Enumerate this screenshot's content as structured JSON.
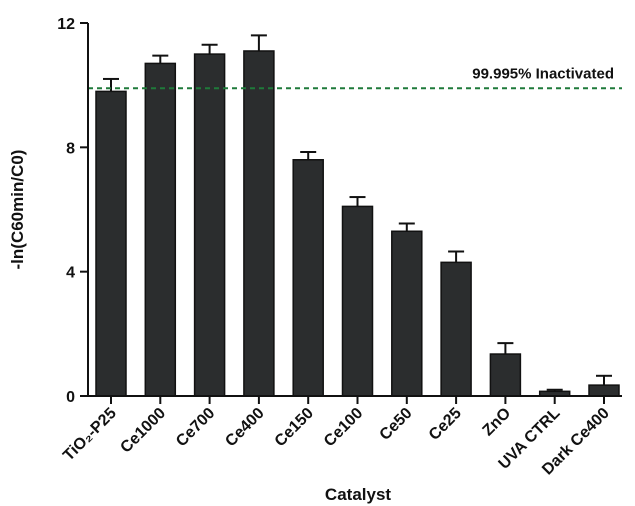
{
  "chart_data": {
    "type": "bar",
    "title": "",
    "xlabel": "Catalyst",
    "ylabel": "-ln(C60min/C0)",
    "ylim": [
      0,
      12
    ],
    "yticks": [
      "0",
      "4",
      "8",
      "12"
    ],
    "categories": [
      "TiO₂-P25",
      "Ce1000",
      "Ce700",
      "Ce400",
      "Ce150",
      "Ce100",
      "Ce50",
      "Ce25",
      "ZnO",
      "UVA CTRL",
      "Dark Ce400"
    ],
    "values": [
      9.8,
      10.7,
      11.0,
      11.1,
      7.6,
      6.1,
      5.3,
      4.3,
      1.35,
      0.15,
      0.35
    ],
    "errors": [
      0.4,
      0.25,
      0.3,
      0.5,
      0.25,
      0.3,
      0.25,
      0.35,
      0.35,
      0.05,
      0.3
    ],
    "bar_color": "#2b2d2e",
    "reference_line": {
      "value": 9.9,
      "label": "99.995% Inactivated",
      "color": "#1f7a3a",
      "style": "dashed"
    },
    "grid": false,
    "legend": "none"
  }
}
